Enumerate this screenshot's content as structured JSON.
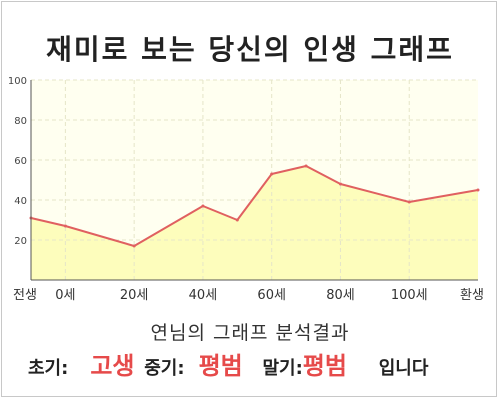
{
  "title": "재미로 보는 당신의 인생 그래프",
  "summary": {
    "heading": "연님의 그래프 분석결과",
    "early_label": "초기:",
    "early_value": "고생",
    "middle_label": "중기:",
    "middle_value": "평범",
    "late_label": "말기:",
    "late_value": "평범",
    "suffix": "입니다"
  },
  "chart_data": {
    "type": "area",
    "title": "재미로 보는 당신의 인생 그래프",
    "xlabel": "",
    "ylabel": "",
    "ylim": [
      0,
      100
    ],
    "yticks": [
      20,
      40,
      60,
      80,
      100
    ],
    "grid": true,
    "x_tick_labels": [
      {
        "x": -10,
        "label": "전생"
      },
      {
        "x": 0,
        "label": "0세"
      },
      {
        "x": 20,
        "label": "20세"
      },
      {
        "x": 40,
        "label": "40세"
      },
      {
        "x": 60,
        "label": "60세"
      },
      {
        "x": 80,
        "label": "80세"
      },
      {
        "x": 100,
        "label": "100세"
      },
      {
        "x": 120,
        "label": "환생"
      }
    ],
    "xlim": [
      -10,
      120
    ],
    "series": [
      {
        "points": [
          {
            "x": -10,
            "y": 31
          },
          {
            "x": 0,
            "y": 27
          },
          {
            "x": 20,
            "y": 17
          },
          {
            "x": 40,
            "y": 37
          },
          {
            "x": 50,
            "y": 30
          },
          {
            "x": 60,
            "y": 53
          },
          {
            "x": 70,
            "y": 57
          },
          {
            "x": 80,
            "y": 48
          },
          {
            "x": 100,
            "y": 39
          },
          {
            "x": 120,
            "y": 45
          }
        ]
      }
    ],
    "colors": {
      "fill": "#fdfdbc",
      "plot_background": "#fffff0",
      "line": "#e06060",
      "grid": "#e6e6c8",
      "axis": "#555555"
    }
  }
}
